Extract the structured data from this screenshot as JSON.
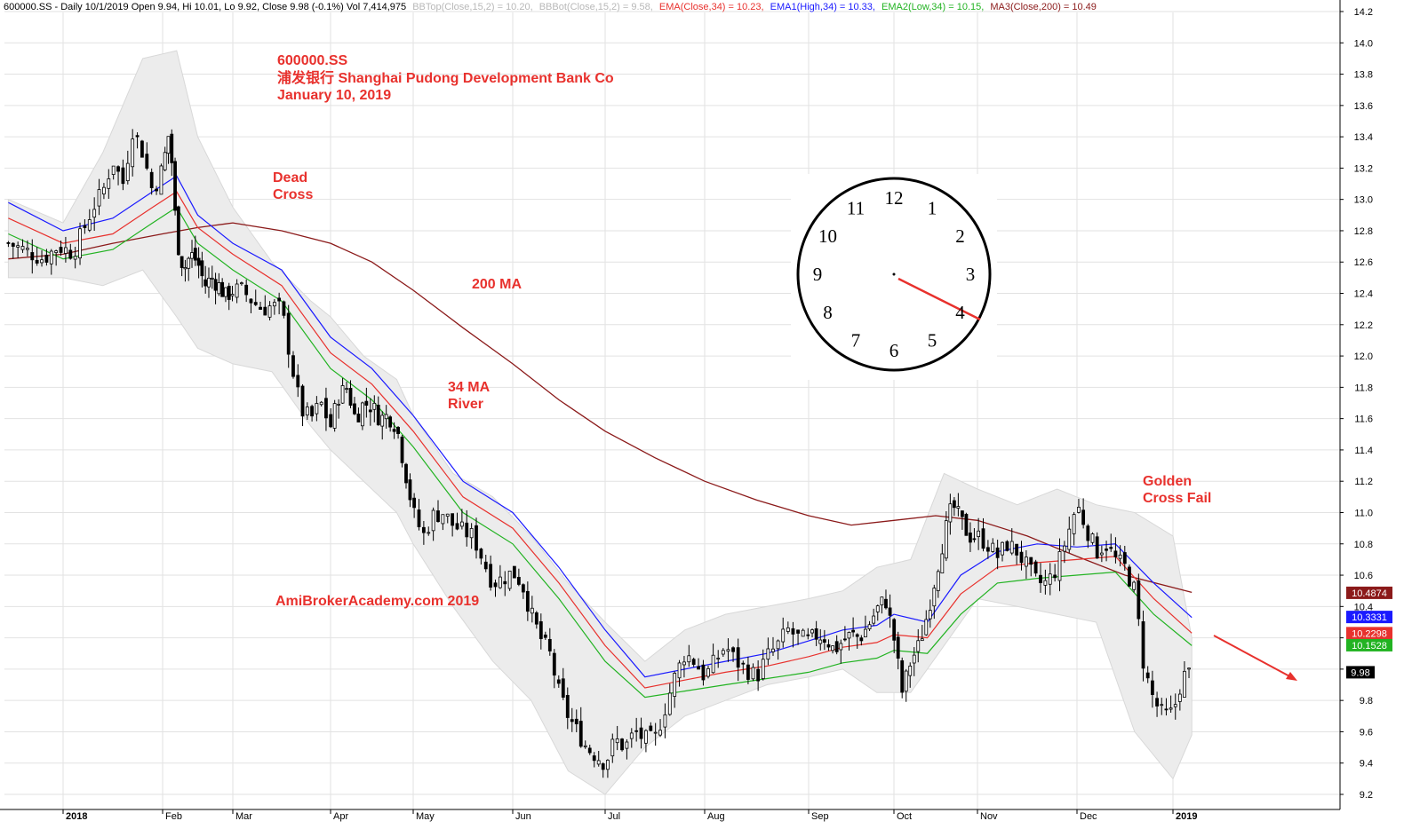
{
  "header": {
    "ticker_info": "600000.SS - Daily 10/1/2019 Open 9.94, Hi 10.01, Lo 9.92, Close 9.98 (-0.1%) Vol 7,414,975",
    "bbtop": "BBTop(Close,15,2) = 10.20,",
    "bbbot": "BBBot(Close,15,2) = 9.58,",
    "ema34": "EMA(Close,34) = 10.23,",
    "ema_high": "EMA1(High,34) = 10.33,",
    "ema_low": "EMA2(Low,34) = 10.15,",
    "ma200": "MA3(Close,200) = 10.49"
  },
  "annotations": {
    "title_ticker": "600000.SS",
    "title_name": "浦发银行  Shanghai Pudong Development Bank Co",
    "title_date": "January 10, 2019",
    "dead_cross_1": "Dead",
    "dead_cross_2": "Cross",
    "ma200_label": "200 MA",
    "river_1": "34 MA",
    "river_2": "River",
    "watermark": "AmiBrokerAcademy.com 2019",
    "golden_1": "Golden",
    "golden_2": "Cross Fail"
  },
  "clock": {
    "numbers": [
      "12",
      "1",
      "2",
      "3",
      "4",
      "5",
      "6",
      "7",
      "8",
      "9",
      "10",
      "11"
    ],
    "hand_direction": "toward 4"
  },
  "colors": {
    "ema34": "#e8312d",
    "ema_high": "#1a1aff",
    "ema_low": "#22b322",
    "ma200": "#8b1a1a",
    "bollinger_fill": "#ececec",
    "candle": "#000000",
    "annotation": "#e8312d"
  },
  "chart_data": {
    "type": "candlestick",
    "y_axis_side": "right",
    "ylim": [
      9.1,
      14.3
    ],
    "y_ticks": [
      "9.2",
      "9.4",
      "9.6",
      "9.8",
      "10.0",
      "10.2",
      "10.4",
      "10.6",
      "10.8",
      "11.0",
      "11.2",
      "11.4",
      "11.6",
      "11.8",
      "12.0",
      "12.2",
      "12.4",
      "12.6",
      "12.8",
      "13.0",
      "13.2",
      "13.4",
      "13.6",
      "13.8",
      "14.0",
      "14.2"
    ],
    "x_ticks": [
      {
        "label": "2018",
        "pos": 0.0,
        "bold": true
      },
      {
        "label": "Feb",
        "pos": 1.0
      },
      {
        "label": "Mar",
        "pos": 2.0
      },
      {
        "label": "Apr",
        "pos": 3.0
      },
      {
        "label": "May",
        "pos": 4.0
      },
      {
        "label": "Jun",
        "pos": 5.0
      },
      {
        "label": "Jul",
        "pos": 6.0
      },
      {
        "label": "Aug",
        "pos": 7.0
      },
      {
        "label": "Sep",
        "pos": 8.0
      },
      {
        "label": "Oct",
        "pos": 9.0
      },
      {
        "label": "Nov",
        "pos": 10.0
      },
      {
        "label": "Dec",
        "pos": 11.0
      },
      {
        "label": "2019",
        "pos": 12.0,
        "bold": true
      }
    ],
    "x_range_months": [
      -0.55,
      12.2
    ],
    "candles_close_path": [
      [
        -0.55,
        12.72
      ],
      [
        -0.4,
        12.68
      ],
      [
        -0.2,
        12.62
      ],
      [
        -0.05,
        12.7
      ],
      [
        0.1,
        12.66
      ],
      [
        0.2,
        12.8
      ],
      [
        0.3,
        12.95
      ],
      [
        0.4,
        13.05
      ],
      [
        0.5,
        13.25
      ],
      [
        0.6,
        13.1
      ],
      [
        0.7,
        13.45
      ],
      [
        0.8,
        13.3
      ],
      [
        0.9,
        13.05
      ],
      [
        1.0,
        13.2
      ],
      [
        1.1,
        13.45
      ],
      [
        1.2,
        12.75
      ],
      [
        1.3,
        12.55
      ],
      [
        1.4,
        12.65
      ],
      [
        1.5,
        12.6
      ],
      [
        1.6,
        12.45
      ],
      [
        1.7,
        12.5
      ],
      [
        1.8,
        12.45
      ],
      [
        1.9,
        12.38
      ],
      [
        2.0,
        12.42
      ],
      [
        2.1,
        12.42
      ],
      [
        2.2,
        12.35
      ],
      [
        2.3,
        12.3
      ],
      [
        2.4,
        12.32
      ],
      [
        2.5,
        12.3
      ],
      [
        2.6,
        11.95
      ],
      [
        2.7,
        11.65
      ],
      [
        2.8,
        11.6
      ],
      [
        2.9,
        11.7
      ],
      [
        3.0,
        11.55
      ],
      [
        3.1,
        11.75
      ],
      [
        3.2,
        11.8
      ],
      [
        3.3,
        11.6
      ],
      [
        3.4,
        11.7
      ],
      [
        3.5,
        11.68
      ],
      [
        3.6,
        11.6
      ],
      [
        3.7,
        11.62
      ],
      [
        3.8,
        11.55
      ],
      [
        4.0,
        11.0
      ],
      [
        4.1,
        10.85
      ],
      [
        4.2,
        10.98
      ],
      [
        4.3,
        11.0
      ],
      [
        4.4,
        10.92
      ],
      [
        4.5,
        10.88
      ],
      [
        4.6,
        10.85
      ],
      [
        4.7,
        10.7
      ],
      [
        4.8,
        10.55
      ],
      [
        4.9,
        10.58
      ],
      [
        5.0,
        10.62
      ],
      [
        5.1,
        10.55
      ],
      [
        5.2,
        10.35
      ],
      [
        5.3,
        10.2
      ],
      [
        5.4,
        10.1
      ],
      [
        5.5,
        9.85
      ],
      [
        5.6,
        9.7
      ],
      [
        5.7,
        9.6
      ],
      [
        5.8,
        9.5
      ],
      [
        5.9,
        9.45
      ],
      [
        6.0,
        9.4
      ],
      [
        6.1,
        9.55
      ],
      [
        6.2,
        9.5
      ],
      [
        6.3,
        9.6
      ],
      [
        6.4,
        9.55
      ],
      [
        6.5,
        9.55
      ],
      [
        6.6,
        9.75
      ],
      [
        6.7,
        9.95
      ],
      [
        6.8,
        10.1
      ],
      [
        6.9,
        10.05
      ],
      [
        7.0,
        9.95
      ],
      [
        7.1,
        10.05
      ],
      [
        7.2,
        10.15
      ],
      [
        7.3,
        10.05
      ],
      [
        7.4,
        10.0
      ],
      [
        7.5,
        9.95
      ],
      [
        7.6,
        10.08
      ],
      [
        7.7,
        10.15
      ],
      [
        7.8,
        10.25
      ],
      [
        7.9,
        10.2
      ],
      [
        8.0,
        10.18
      ],
      [
        8.1,
        10.22
      ],
      [
        8.2,
        10.2
      ],
      [
        8.3,
        10.12
      ],
      [
        8.4,
        10.18
      ],
      [
        8.5,
        10.22
      ],
      [
        8.6,
        10.2
      ],
      [
        8.7,
        10.28
      ],
      [
        8.8,
        10.38
      ],
      [
        8.9,
        10.45
      ],
      [
        9.0,
        10.2
      ],
      [
        9.1,
        9.85
      ],
      [
        9.2,
        10.05
      ],
      [
        9.3,
        10.15
      ],
      [
        9.4,
        10.35
      ],
      [
        9.5,
        10.6
      ],
      [
        9.6,
        10.85
      ],
      [
        9.7,
        11.05
      ],
      [
        9.8,
        10.95
      ],
      [
        9.9,
        10.85
      ],
      [
        10.0,
        10.85
      ],
      [
        10.1,
        10.8
      ],
      [
        10.2,
        10.72
      ],
      [
        10.3,
        10.8
      ],
      [
        10.4,
        10.75
      ],
      [
        10.5,
        10.65
      ],
      [
        10.6,
        10.55
      ],
      [
        10.7,
        10.55
      ],
      [
        10.8,
        10.65
      ],
      [
        10.9,
        10.85
      ],
      [
        11.0,
        11.05
      ],
      [
        11.1,
        10.9
      ],
      [
        11.2,
        10.75
      ],
      [
        11.3,
        10.8
      ],
      [
        11.4,
        10.7
      ],
      [
        11.5,
        10.65
      ],
      [
        11.6,
        10.5
      ],
      [
        11.7,
        10.0
      ],
      [
        11.8,
        9.8
      ],
      [
        11.9,
        9.7
      ],
      [
        12.0,
        9.72
      ],
      [
        12.1,
        9.95
      ],
      [
        12.2,
        9.98
      ]
    ],
    "ema_high_path": [
      [
        -0.55,
        12.98
      ],
      [
        0,
        12.8
      ],
      [
        0.5,
        12.88
      ],
      [
        0.9,
        13.05
      ],
      [
        1.2,
        13.15
      ],
      [
        1.5,
        12.9
      ],
      [
        2.0,
        12.72
      ],
      [
        2.5,
        12.55
      ],
      [
        3.0,
        12.12
      ],
      [
        3.5,
        11.92
      ],
      [
        4.0,
        11.62
      ],
      [
        4.5,
        11.2
      ],
      [
        5.0,
        11.0
      ],
      [
        5.5,
        10.65
      ],
      [
        6.0,
        10.25
      ],
      [
        6.4,
        9.95
      ],
      [
        6.8,
        10.0
      ],
      [
        7.2,
        10.05
      ],
      [
        7.6,
        10.1
      ],
      [
        8.0,
        10.18
      ],
      [
        8.4,
        10.25
      ],
      [
        8.8,
        10.28
      ],
      [
        9.0,
        10.35
      ],
      [
        9.4,
        10.3
      ],
      [
        9.8,
        10.6
      ],
      [
        10.2,
        10.75
      ],
      [
        10.6,
        10.8
      ],
      [
        11.0,
        10.78
      ],
      [
        11.4,
        10.8
      ],
      [
        11.8,
        10.55
      ],
      [
        12.2,
        10.33
      ]
    ],
    "ema34_path": [
      [
        -0.55,
        12.88
      ],
      [
        0,
        12.72
      ],
      [
        0.5,
        12.78
      ],
      [
        0.9,
        12.95
      ],
      [
        1.2,
        13.05
      ],
      [
        1.5,
        12.82
      ],
      [
        2.0,
        12.65
      ],
      [
        2.5,
        12.45
      ],
      [
        3.0,
        12.02
      ],
      [
        3.5,
        11.82
      ],
      [
        4.0,
        11.52
      ],
      [
        4.5,
        11.1
      ],
      [
        5.0,
        10.9
      ],
      [
        5.5,
        10.55
      ],
      [
        6.0,
        10.15
      ],
      [
        6.4,
        9.88
      ],
      [
        6.8,
        9.93
      ],
      [
        7.2,
        9.98
      ],
      [
        7.6,
        10.02
      ],
      [
        8.0,
        10.08
      ],
      [
        8.4,
        10.14
      ],
      [
        8.8,
        10.17
      ],
      [
        9.0,
        10.22
      ],
      [
        9.4,
        10.2
      ],
      [
        9.8,
        10.48
      ],
      [
        10.2,
        10.65
      ],
      [
        10.6,
        10.68
      ],
      [
        11.0,
        10.7
      ],
      [
        11.4,
        10.72
      ],
      [
        11.8,
        10.45
      ],
      [
        12.2,
        10.23
      ]
    ],
    "ema_low_path": [
      [
        -0.55,
        12.78
      ],
      [
        0,
        12.62
      ],
      [
        0.5,
        12.68
      ],
      [
        0.9,
        12.85
      ],
      [
        1.2,
        12.95
      ],
      [
        1.5,
        12.72
      ],
      [
        2.0,
        12.55
      ],
      [
        2.5,
        12.35
      ],
      [
        3.0,
        11.92
      ],
      [
        3.5,
        11.72
      ],
      [
        4.0,
        11.42
      ],
      [
        4.5,
        11.0
      ],
      [
        5.0,
        10.8
      ],
      [
        5.5,
        10.45
      ],
      [
        6.0,
        10.05
      ],
      [
        6.4,
        9.82
      ],
      [
        6.8,
        9.86
      ],
      [
        7.2,
        9.9
      ],
      [
        7.6,
        9.94
      ],
      [
        8.0,
        9.98
      ],
      [
        8.4,
        10.04
      ],
      [
        8.8,
        10.07
      ],
      [
        9.0,
        10.12
      ],
      [
        9.4,
        10.1
      ],
      [
        9.8,
        10.35
      ],
      [
        10.2,
        10.55
      ],
      [
        10.6,
        10.58
      ],
      [
        11.0,
        10.6
      ],
      [
        11.4,
        10.62
      ],
      [
        11.8,
        10.35
      ],
      [
        12.2,
        10.15
      ]
    ],
    "ma200_path": [
      [
        -0.55,
        12.62
      ],
      [
        0,
        12.65
      ],
      [
        0.5,
        12.72
      ],
      [
        1.0,
        12.78
      ],
      [
        1.5,
        12.82
      ],
      [
        2.0,
        12.85
      ],
      [
        2.5,
        12.8
      ],
      [
        3.0,
        12.72
      ],
      [
        3.5,
        12.6
      ],
      [
        4.0,
        12.42
      ],
      [
        4.5,
        12.18
      ],
      [
        5.0,
        11.95
      ],
      [
        5.5,
        11.72
      ],
      [
        6.0,
        11.52
      ],
      [
        6.5,
        11.35
      ],
      [
        7.0,
        11.2
      ],
      [
        7.5,
        11.08
      ],
      [
        8.0,
        10.98
      ],
      [
        8.5,
        10.92
      ],
      [
        9.0,
        10.95
      ],
      [
        9.5,
        10.98
      ],
      [
        10.0,
        10.95
      ],
      [
        10.5,
        10.85
      ],
      [
        11.0,
        10.72
      ],
      [
        11.5,
        10.6
      ],
      [
        12.2,
        10.49
      ]
    ],
    "bb_upper_path": [
      [
        -0.55,
        13.0
      ],
      [
        0,
        12.85
      ],
      [
        0.4,
        13.3
      ],
      [
        0.8,
        13.9
      ],
      [
        1.2,
        13.95
      ],
      [
        1.5,
        13.4
      ],
      [
        2.0,
        12.95
      ],
      [
        2.4,
        12.6
      ],
      [
        2.8,
        12.35
      ],
      [
        3.0,
        12.25
      ],
      [
        3.4,
        12.0
      ],
      [
        3.8,
        11.85
      ],
      [
        4.0,
        11.62
      ],
      [
        4.4,
        11.25
      ],
      [
        4.8,
        11.1
      ],
      [
        5.2,
        10.85
      ],
      [
        5.6,
        10.55
      ],
      [
        6.0,
        10.3
      ],
      [
        6.4,
        10.05
      ],
      [
        6.8,
        10.25
      ],
      [
        7.2,
        10.35
      ],
      [
        7.6,
        10.4
      ],
      [
        8.0,
        10.45
      ],
      [
        8.4,
        10.5
      ],
      [
        8.8,
        10.65
      ],
      [
        9.2,
        10.7
      ],
      [
        9.6,
        11.25
      ],
      [
        10.0,
        11.15
      ],
      [
        10.4,
        11.05
      ],
      [
        10.8,
        11.15
      ],
      [
        11.2,
        11.05
      ],
      [
        11.6,
        11.0
      ],
      [
        12.0,
        10.85
      ],
      [
        12.2,
        10.2
      ]
    ],
    "bb_lower_path": [
      [
        -0.55,
        12.5
      ],
      [
        0,
        12.5
      ],
      [
        0.4,
        12.45
      ],
      [
        0.8,
        12.55
      ],
      [
        1.2,
        12.25
      ],
      [
        1.5,
        12.05
      ],
      [
        2.0,
        11.95
      ],
      [
        2.4,
        11.9
      ],
      [
        2.8,
        11.55
      ],
      [
        3.0,
        11.4
      ],
      [
        3.4,
        11.2
      ],
      [
        3.8,
        11.0
      ],
      [
        4.0,
        10.8
      ],
      [
        4.4,
        10.4
      ],
      [
        4.8,
        10.05
      ],
      [
        5.2,
        9.8
      ],
      [
        5.6,
        9.35
      ],
      [
        6.0,
        9.2
      ],
      [
        6.4,
        9.5
      ],
      [
        6.8,
        9.7
      ],
      [
        7.2,
        9.8
      ],
      [
        7.6,
        9.9
      ],
      [
        8.0,
        9.95
      ],
      [
        8.4,
        10.0
      ],
      [
        8.8,
        9.85
      ],
      [
        9.2,
        9.85
      ],
      [
        9.6,
        10.15
      ],
      [
        10.0,
        10.45
      ],
      [
        10.4,
        10.4
      ],
      [
        10.8,
        10.35
      ],
      [
        11.2,
        10.3
      ],
      [
        11.6,
        9.6
      ],
      [
        12.0,
        9.3
      ],
      [
        12.2,
        9.58
      ]
    ],
    "price_tags": [
      {
        "value": 10.4874,
        "label": "10.4874",
        "color": "#8b1a1a"
      },
      {
        "value": 10.3331,
        "label": "10.3331",
        "color": "#1a1aff"
      },
      {
        "value": 10.2298,
        "label": "10.2298",
        "color": "#e8312d"
      },
      {
        "value": 10.1528,
        "label": "10.1528",
        "color": "#22b322"
      },
      {
        "value": 9.98,
        "label": "9.98",
        "color": "#000000"
      }
    ]
  }
}
